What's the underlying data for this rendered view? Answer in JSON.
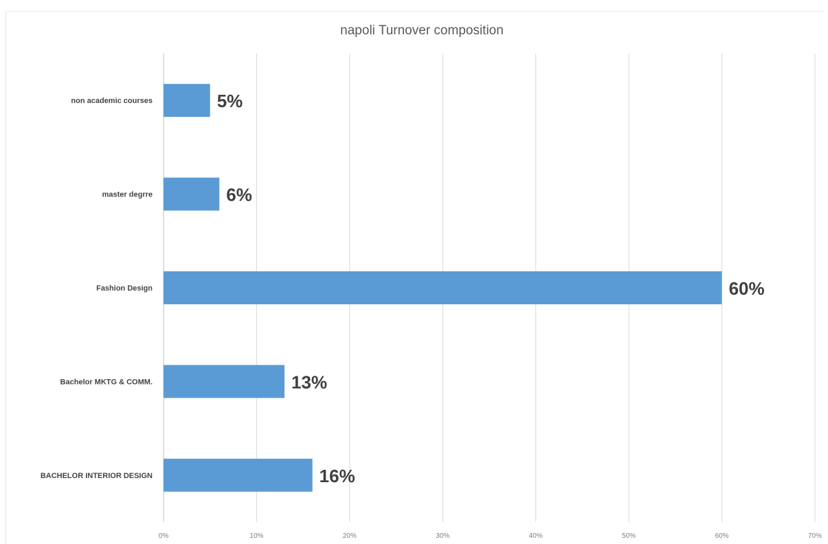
{
  "chart_data": {
    "type": "bar",
    "orientation": "horizontal",
    "title": "napoli Turnover composition",
    "categories": [
      "non academic courses",
      "master degrre",
      "Fashion Design",
      "Bachelor MKTG & COMM.",
      "BACHELOR INTERIOR DESIGN"
    ],
    "values": [
      5,
      6,
      60,
      13,
      16
    ],
    "data_labels": [
      "5%",
      "6%",
      "60%",
      "13%",
      "16%"
    ],
    "xlim": [
      0,
      70
    ],
    "x_ticks": [
      0,
      10,
      20,
      30,
      40,
      50,
      60,
      70
    ],
    "x_tick_labels": [
      "0%",
      "10%",
      "20%",
      "30%",
      "40%",
      "50%",
      "60%",
      "70%"
    ],
    "grid": true,
    "bar_color": "#5b9bd5",
    "legend": "none"
  }
}
